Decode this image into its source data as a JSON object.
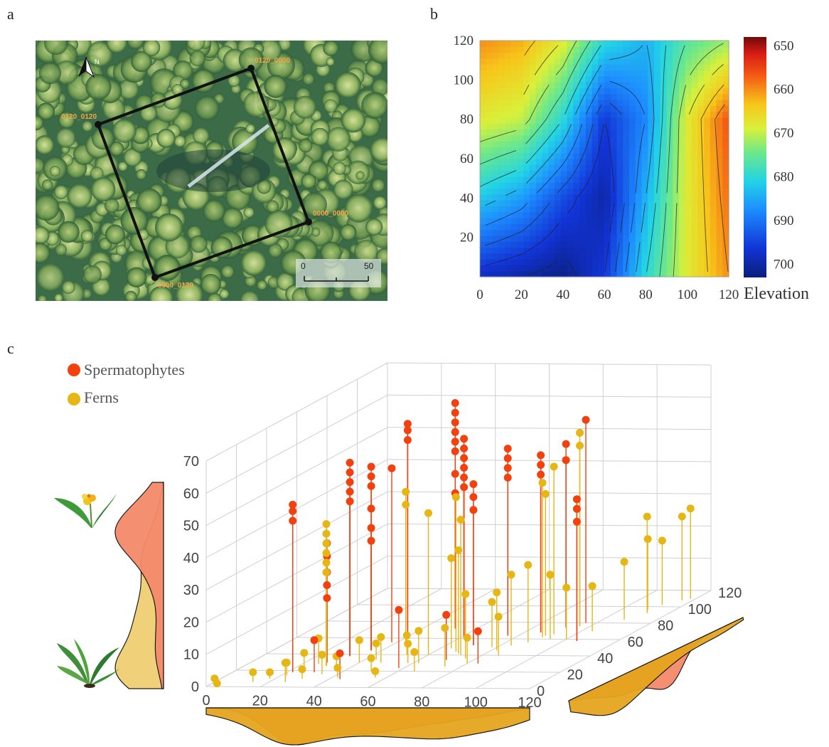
{
  "panels": {
    "a": {
      "label": "a",
      "corners": [
        "0120_0000",
        "0120_0120",
        "0000_0000",
        "0000_0120"
      ],
      "scale_bar": {
        "start": "0",
        "end": "50"
      },
      "north_label": "N"
    },
    "b": {
      "label": "b"
    },
    "c": {
      "label": "c"
    }
  },
  "chart_data": [
    {
      "panel": "b",
      "type": "heatmap",
      "title": "",
      "xlabel": "",
      "ylabel": "",
      "x_ticks": [
        "0",
        "20",
        "40",
        "60",
        "80",
        "100",
        "120"
      ],
      "y_ticks": [
        "20",
        "40",
        "60",
        "80",
        "100",
        "120"
      ],
      "xlim": [
        0,
        120
      ],
      "ylim": [
        0,
        120
      ],
      "colorbar": {
        "label": "Elevation",
        "ticks": [
          "650",
          "660",
          "670",
          "680",
          "690",
          "700"
        ],
        "range": [
          648,
          703
        ],
        "low_color": "#7a0c0c",
        "high_color": "#0a1e7a"
      },
      "contours": true,
      "description_of_field": "valley (high values, blue) runs diagonally from lower-left to centre; low values (red) on right edge and top-left corner",
      "elevation_control_points": [
        {
          "x": 0,
          "y": 120,
          "v": 660
        },
        {
          "x": 20,
          "y": 120,
          "v": 662
        },
        {
          "x": 40,
          "y": 120,
          "v": 668
        },
        {
          "x": 60,
          "y": 120,
          "v": 680
        },
        {
          "x": 80,
          "y": 120,
          "v": 684
        },
        {
          "x": 100,
          "y": 120,
          "v": 676
        },
        {
          "x": 120,
          "y": 120,
          "v": 672
        },
        {
          "x": 0,
          "y": 80,
          "v": 668
        },
        {
          "x": 20,
          "y": 80,
          "v": 670
        },
        {
          "x": 40,
          "y": 80,
          "v": 680
        },
        {
          "x": 60,
          "y": 80,
          "v": 696
        },
        {
          "x": 80,
          "y": 80,
          "v": 688
        },
        {
          "x": 100,
          "y": 80,
          "v": 668
        },
        {
          "x": 120,
          "y": 80,
          "v": 656
        },
        {
          "x": 0,
          "y": 40,
          "v": 682
        },
        {
          "x": 20,
          "y": 40,
          "v": 686
        },
        {
          "x": 40,
          "y": 40,
          "v": 694
        },
        {
          "x": 60,
          "y": 40,
          "v": 700
        },
        {
          "x": 80,
          "y": 40,
          "v": 684
        },
        {
          "x": 100,
          "y": 40,
          "v": 668
        },
        {
          "x": 120,
          "y": 40,
          "v": 658
        },
        {
          "x": 0,
          "y": 0,
          "v": 698
        },
        {
          "x": 20,
          "y": 0,
          "v": 700
        },
        {
          "x": 40,
          "y": 0,
          "v": 702
        },
        {
          "x": 60,
          "y": 0,
          "v": 696
        },
        {
          "x": 80,
          "y": 0,
          "v": 680
        },
        {
          "x": 100,
          "y": 0,
          "v": 668
        },
        {
          "x": 120,
          "y": 0,
          "v": 660
        }
      ]
    },
    {
      "panel": "c",
      "type": "scatter",
      "title": "",
      "xlim": [
        0,
        120
      ],
      "ylim": [
        0,
        120
      ],
      "zlim": [
        0,
        70
      ],
      "x_ticks": [
        "0",
        "20",
        "40",
        "60",
        "80",
        "100",
        "120"
      ],
      "y_ticks": [
        "0",
        "20",
        "40",
        "60",
        "80",
        "100",
        "120"
      ],
      "z_ticks": [
        "0",
        "10",
        "20",
        "30",
        "40",
        "50",
        "60",
        "70"
      ],
      "series": [
        {
          "name": "Spermatophytes",
          "color": "#f2410f",
          "points": [
            {
              "x": 22,
              "y": 18,
              "z": 52
            },
            {
              "x": 22,
              "y": 18,
              "z": 50
            },
            {
              "x": 22,
              "y": 18,
              "z": 47
            },
            {
              "x": 28,
              "y": 30,
              "z": 37
            },
            {
              "x": 28,
              "y": 30,
              "z": 33
            },
            {
              "x": 28,
              "y": 30,
              "z": 28
            },
            {
              "x": 28,
              "y": 30,
              "z": 24
            },
            {
              "x": 28,
              "y": 30,
              "z": 20
            },
            {
              "x": 32,
              "y": 38,
              "z": 60
            },
            {
              "x": 32,
              "y": 38,
              "z": 57
            },
            {
              "x": 32,
              "y": 38,
              "z": 54
            },
            {
              "x": 32,
              "y": 38,
              "z": 51
            },
            {
              "x": 32,
              "y": 38,
              "z": 48
            },
            {
              "x": 36,
              "y": 45,
              "z": 57
            },
            {
              "x": 36,
              "y": 45,
              "z": 54
            },
            {
              "x": 36,
              "y": 45,
              "z": 51
            },
            {
              "x": 36,
              "y": 45,
              "z": 44
            },
            {
              "x": 36,
              "y": 45,
              "z": 38
            },
            {
              "x": 36,
              "y": 45,
              "z": 34
            },
            {
              "x": 38,
              "y": 55,
              "z": 54
            },
            {
              "x": 40,
              "y": 62,
              "z": 66
            },
            {
              "x": 40,
              "y": 62,
              "z": 64
            },
            {
              "x": 40,
              "y": 62,
              "z": 61
            },
            {
              "x": 52,
              "y": 72,
              "z": 70
            },
            {
              "x": 52,
              "y": 72,
              "z": 67
            },
            {
              "x": 52,
              "y": 72,
              "z": 64
            },
            {
              "x": 52,
              "y": 72,
              "z": 61
            },
            {
              "x": 52,
              "y": 72,
              "z": 58
            },
            {
              "x": 52,
              "y": 72,
              "z": 55
            },
            {
              "x": 52,
              "y": 72,
              "z": 48
            },
            {
              "x": 52,
              "y": 72,
              "z": 42
            },
            {
              "x": 62,
              "y": 60,
              "z": 62
            },
            {
              "x": 62,
              "y": 60,
              "z": 59
            },
            {
              "x": 62,
              "y": 60,
              "z": 56
            },
            {
              "x": 62,
              "y": 60,
              "z": 53
            },
            {
              "x": 62,
              "y": 60,
              "z": 50
            },
            {
              "x": 62,
              "y": 60,
              "z": 47
            },
            {
              "x": 70,
              "y": 52,
              "z": 50
            },
            {
              "x": 70,
              "y": 52,
              "z": 46
            },
            {
              "x": 70,
              "y": 52,
              "z": 42
            },
            {
              "x": 76,
              "y": 64,
              "z": 58
            },
            {
              "x": 76,
              "y": 64,
              "z": 55
            },
            {
              "x": 76,
              "y": 64,
              "z": 52
            },
            {
              "x": 76,
              "y": 64,
              "z": 49
            },
            {
              "x": 86,
              "y": 68,
              "z": 55
            },
            {
              "x": 86,
              "y": 68,
              "z": 52
            },
            {
              "x": 86,
              "y": 68,
              "z": 49
            },
            {
              "x": 92,
              "y": 74,
              "z": 57
            },
            {
              "x": 92,
              "y": 74,
              "z": 52
            },
            {
              "x": 96,
              "y": 80,
              "z": 63
            },
            {
              "x": 105,
              "y": 58,
              "z": 44
            },
            {
              "x": 105,
              "y": 58,
              "z": 41
            },
            {
              "x": 105,
              "y": 58,
              "z": 37
            },
            {
              "x": 58,
              "y": 24,
              "z": 18
            },
            {
              "x": 70,
              "y": 34,
              "z": 14
            },
            {
              "x": 84,
              "y": 30,
              "z": 10
            },
            {
              "x": 44,
              "y": 10,
              "z": 8
            },
            {
              "x": 30,
              "y": 18,
              "z": 10
            }
          ]
        },
        {
          "name": "Ferns",
          "color": "#e6b714",
          "points": [
            {
              "x": 2,
              "y": 2,
              "z": 2
            },
            {
              "x": 4,
              "y": 0,
              "z": 1
            },
            {
              "x": 14,
              "y": 6,
              "z": 3
            },
            {
              "x": 18,
              "y": 10,
              "z": 2
            },
            {
              "x": 22,
              "y": 14,
              "z": 4
            },
            {
              "x": 26,
              "y": 6,
              "z": 6
            },
            {
              "x": 30,
              "y": 10,
              "z": 3
            },
            {
              "x": 24,
              "y": 22,
              "z": 5
            },
            {
              "x": 26,
              "y": 28,
              "z": 8
            },
            {
              "x": 30,
              "y": 26,
              "z": 44
            },
            {
              "x": 30,
              "y": 26,
              "z": 41
            },
            {
              "x": 30,
              "y": 26,
              "z": 38
            },
            {
              "x": 30,
              "y": 26,
              "z": 35
            },
            {
              "x": 30,
              "y": 26,
              "z": 32
            },
            {
              "x": 30,
              "y": 26,
              "z": 29
            },
            {
              "x": 34,
              "y": 16,
              "z": 6
            },
            {
              "x": 36,
              "y": 22,
              "z": 4
            },
            {
              "x": 40,
              "y": 30,
              "z": 7
            },
            {
              "x": 42,
              "y": 12,
              "z": 3
            },
            {
              "x": 44,
              "y": 34,
              "z": 5
            },
            {
              "x": 46,
              "y": 50,
              "z": 48
            },
            {
              "x": 46,
              "y": 50,
              "z": 44
            },
            {
              "x": 48,
              "y": 30,
              "z": 8
            },
            {
              "x": 50,
              "y": 20,
              "z": 4
            },
            {
              "x": 52,
              "y": 40,
              "z": 6
            },
            {
              "x": 56,
              "y": 12,
              "z": 2
            },
            {
              "x": 58,
              "y": 30,
              "z": 6
            },
            {
              "x": 60,
              "y": 40,
              "z": 44
            },
            {
              "x": 62,
              "y": 30,
              "z": 10
            },
            {
              "x": 64,
              "y": 48,
              "z": 28
            },
            {
              "x": 66,
              "y": 20,
              "z": 6
            },
            {
              "x": 68,
              "y": 44,
              "z": 48
            },
            {
              "x": 70,
              "y": 42,
              "z": 32
            },
            {
              "x": 72,
              "y": 40,
              "z": 42
            },
            {
              "x": 74,
              "y": 26,
              "z": 12
            },
            {
              "x": 76,
              "y": 36,
              "z": 20
            },
            {
              "x": 78,
              "y": 50,
              "z": 14
            },
            {
              "x": 80,
              "y": 30,
              "z": 8
            },
            {
              "x": 82,
              "y": 46,
              "z": 18
            },
            {
              "x": 84,
              "y": 52,
              "z": 22
            },
            {
              "x": 86,
              "y": 40,
              "z": 12
            },
            {
              "x": 88,
              "y": 56,
              "z": 24
            },
            {
              "x": 90,
              "y": 62,
              "z": 48
            },
            {
              "x": 90,
              "y": 64,
              "z": 44
            },
            {
              "x": 92,
              "y": 66,
              "z": 52
            },
            {
              "x": 94,
              "y": 60,
              "z": 20
            },
            {
              "x": 96,
              "y": 76,
              "z": 60
            },
            {
              "x": 96,
              "y": 76,
              "z": 56
            },
            {
              "x": 100,
              "y": 60,
              "z": 16
            },
            {
              "x": 104,
              "y": 70,
              "z": 14
            },
            {
              "x": 108,
              "y": 84,
              "z": 18
            },
            {
              "x": 110,
              "y": 96,
              "z": 22
            },
            {
              "x": 112,
              "y": 102,
              "z": 20
            },
            {
              "x": 116,
              "y": 108,
              "z": 26
            },
            {
              "x": 118,
              "y": 110,
              "z": 28
            },
            {
              "x": 112,
              "y": 92,
              "z": 30
            }
          ]
        }
      ],
      "marginals": {
        "z_density": true,
        "x_density": true,
        "y_density": true
      },
      "legend": {
        "placement": "top-left"
      }
    }
  ],
  "colors": {
    "spermatophytes": "#f2410f",
    "ferns": "#e6b714",
    "density_sperm": "#f58a6b",
    "density_fern": "#e6a51e",
    "density_fern_light": "#f0cf72",
    "grid": "#cfcfcf",
    "axis_text": "#444444"
  },
  "icons": {
    "north_arrow": "north-arrow-icon",
    "flowering_plant": "flowering-plant-icon",
    "fern_plant": "fern-plant-icon"
  }
}
